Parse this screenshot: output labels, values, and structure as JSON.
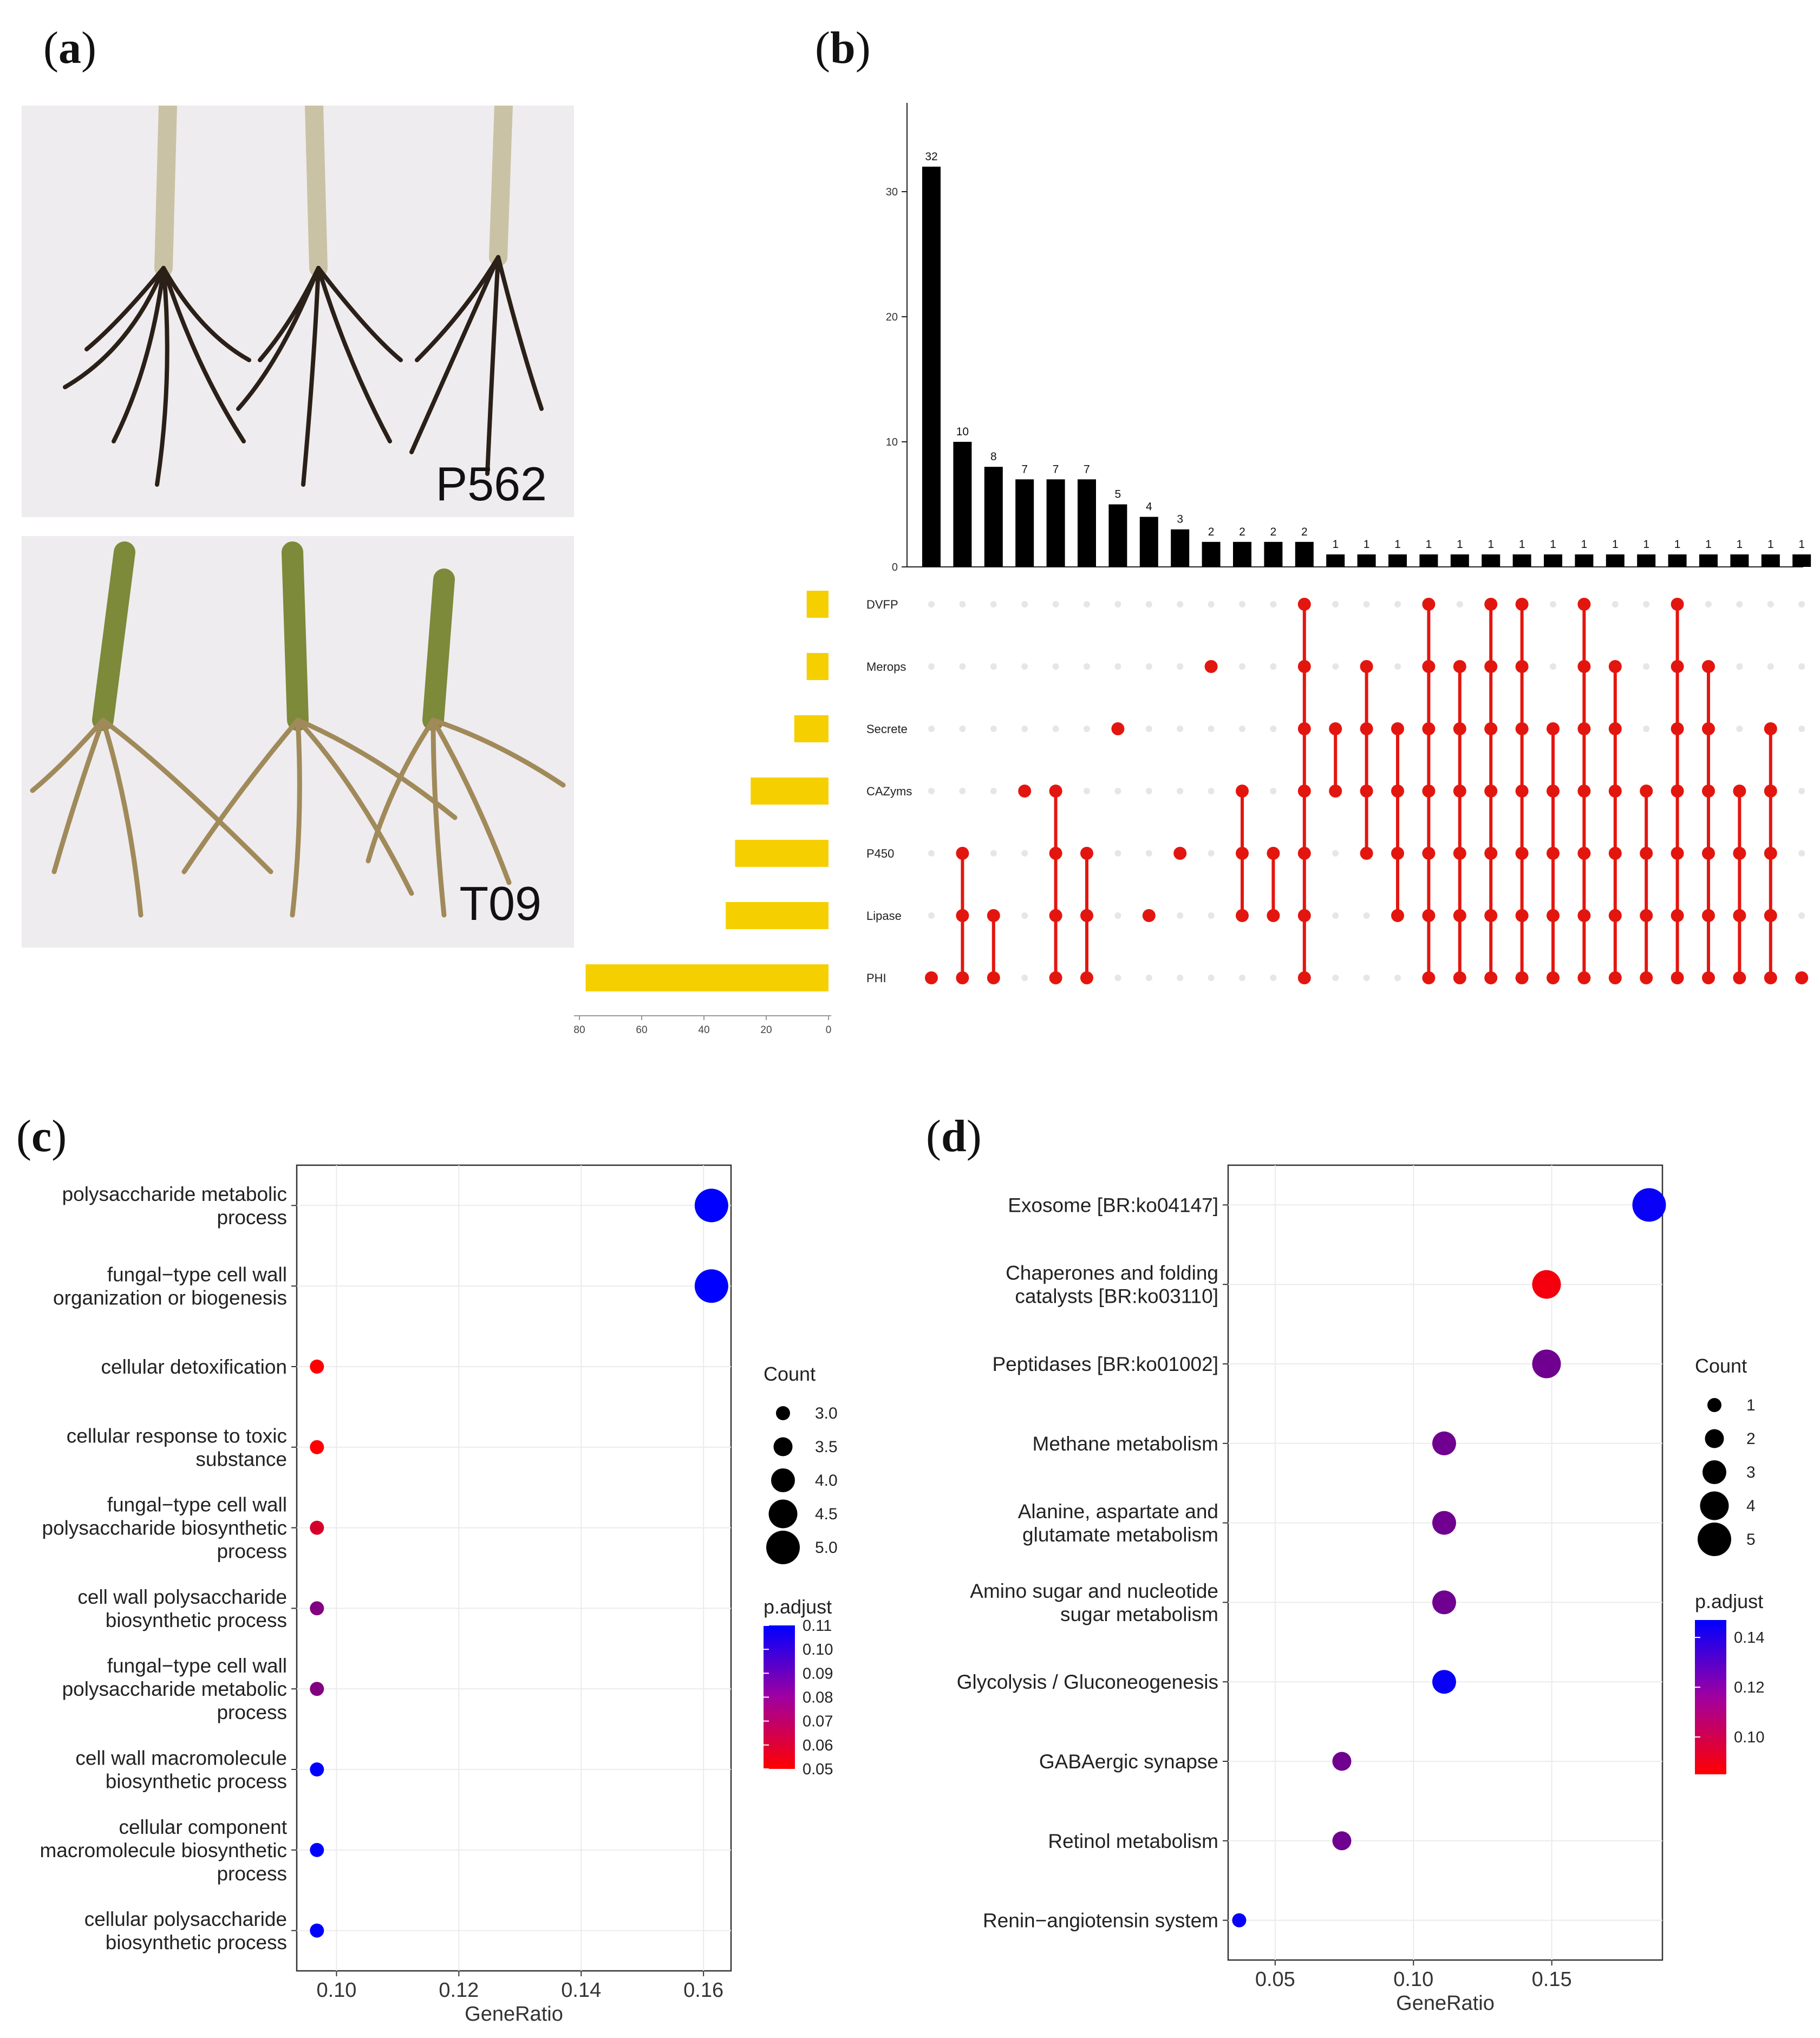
{
  "panels": {
    "a": {
      "letter": "a"
    },
    "b": {
      "letter": "b"
    },
    "c": {
      "letter": "c"
    },
    "d": {
      "letter": "d"
    }
  },
  "photos": {
    "top_label": "P562",
    "bottom_label": "T09"
  },
  "colors": {
    "bar": "#000000",
    "setbar": "#f5cf00",
    "dot": "#e3160f",
    "dot_off": "#e6e6e6",
    "grid": "#ebebeb",
    "low": "#ff0000",
    "high": "#0000ff"
  },
  "chart_data": [
    {
      "id": "b",
      "type": "bar",
      "title": "",
      "intersection_counts": [
        32,
        10,
        8,
        7,
        7,
        7,
        5,
        4,
        3,
        2,
        2,
        2,
        2,
        1,
        1,
        1,
        1,
        1,
        1,
        1,
        1,
        1,
        1,
        1,
        1,
        1,
        1,
        1,
        1
      ],
      "y_ticks": [
        0,
        10,
        20,
        30
      ],
      "sets": [
        "DVFP",
        "Merops",
        "Secrete",
        "CAZyms",
        "P450",
        "Lipase",
        "PHI"
      ],
      "set_sizes": [
        7,
        7,
        11,
        25,
        30,
        33,
        78
      ],
      "set_ticks": [
        80,
        60,
        40,
        20,
        0
      ],
      "memberships": [
        [
          "PHI"
        ],
        [
          "P450",
          "Lipase",
          "PHI"
        ],
        [
          "Lipase",
          "PHI"
        ],
        [
          "CAZyms"
        ],
        [
          "CAZyms",
          "P450",
          "Lipase",
          "PHI"
        ],
        [
          "P450",
          "Lipase",
          "PHI"
        ],
        [
          "Secrete"
        ],
        [
          "Lipase"
        ],
        [
          "P450"
        ],
        [
          "Merops"
        ],
        [
          "CAZyms",
          "P450",
          "Lipase"
        ],
        [
          "P450",
          "Lipase"
        ],
        [
          "DVFP",
          "Merops",
          "Secrete",
          "CAZyms",
          "P450",
          "Lipase",
          "PHI"
        ],
        [
          "Secrete",
          "CAZyms"
        ],
        [
          "Merops",
          "Secrete",
          "CAZyms",
          "P450"
        ],
        [
          "Secrete",
          "CAZyms",
          "P450",
          "Lipase"
        ],
        [
          "DVFP",
          "Merops",
          "Secrete",
          "CAZyms",
          "P450",
          "Lipase",
          "PHI"
        ],
        [
          "Merops",
          "Secrete",
          "CAZyms",
          "P450",
          "Lipase",
          "PHI"
        ],
        [
          "DVFP",
          "Merops",
          "Secrete",
          "CAZyms",
          "P450",
          "Lipase",
          "PHI"
        ],
        [
          "DVFP",
          "Merops",
          "Secrete",
          "CAZyms",
          "P450",
          "Lipase",
          "PHI"
        ],
        [
          "Secrete",
          "CAZyms",
          "P450",
          "Lipase",
          "PHI"
        ],
        [
          "DVFP",
          "Merops",
          "Secrete",
          "CAZyms",
          "P450",
          "Lipase",
          "PHI"
        ],
        [
          "Merops",
          "Secrete",
          "CAZyms",
          "P450",
          "Lipase",
          "PHI"
        ],
        [
          "CAZyms",
          "P450",
          "Lipase",
          "PHI"
        ],
        [
          "DVFP",
          "Merops",
          "Secrete",
          "CAZyms",
          "P450",
          "Lipase",
          "PHI"
        ],
        [
          "Merops",
          "Secrete",
          "CAZyms",
          "P450",
          "Lipase",
          "PHI"
        ],
        [
          "CAZyms",
          "P450",
          "Lipase",
          "PHI"
        ],
        [
          "Secrete",
          "CAZyms",
          "P450",
          "Lipase",
          "PHI"
        ],
        [
          "PHI"
        ]
      ],
      "empty_points_note": ""
    },
    {
      "id": "c",
      "type": "scatter",
      "xlabel": "GeneRatio",
      "xlim": [
        0.0935,
        0.1645
      ],
      "x_ticks": [
        "0.10",
        "0.12",
        "0.14",
        "0.16"
      ],
      "x_tick_values": [
        0.1,
        0.12,
        0.14,
        0.16
      ],
      "terms": [
        {
          "label": [
            "polysaccharide metabolic",
            "process"
          ],
          "x": 0.1613,
          "count": 5,
          "p": 0.11
        },
        {
          "label": [
            "fungal−type cell wall",
            "organization or biogenesis"
          ],
          "x": 0.1613,
          "count": 5,
          "p": 0.11
        },
        {
          "label": [
            "cellular detoxification"
          ],
          "x": 0.0968,
          "count": 3,
          "p": 0.05
        },
        {
          "label": [
            "cellular response to toxic",
            "substance"
          ],
          "x": 0.0968,
          "count": 3,
          "p": 0.05
        },
        {
          "label": [
            "fungal−type cell wall",
            "polysaccharide biosynthetic",
            "process"
          ],
          "x": 0.0968,
          "count": 3,
          "p": 0.06
        },
        {
          "label": [
            "cell wall polysaccharide",
            "biosynthetic process"
          ],
          "x": 0.0968,
          "count": 3,
          "p": 0.08
        },
        {
          "label": [
            "fungal−type cell wall",
            "polysaccharide metabolic",
            "process"
          ],
          "x": 0.0968,
          "count": 3,
          "p": 0.08
        },
        {
          "label": [
            "cell wall macromolecule",
            "biosynthetic process"
          ],
          "x": 0.0968,
          "count": 3,
          "p": 0.11
        },
        {
          "label": [
            "cellular component",
            "macromolecule biosynthetic",
            "process"
          ],
          "x": 0.0968,
          "count": 3,
          "p": 0.11
        },
        {
          "label": [
            "cellular polysaccharide",
            "biosynthetic process"
          ],
          "x": 0.0968,
          "count": 3,
          "p": 0.11
        }
      ],
      "count_legend": {
        "title": "Count",
        "values": [
          "3.0",
          "3.5",
          "4.0",
          "4.5",
          "5.0"
        ],
        "nums": [
          3.0,
          3.5,
          4.0,
          4.5,
          5.0
        ]
      },
      "color_legend": {
        "title": "p.adjust",
        "values": [
          "0.11",
          "0.10",
          "0.09",
          "0.08",
          "0.07",
          "0.06",
          "0.05"
        ],
        "range": [
          0.05,
          0.11
        ]
      }
    },
    {
      "id": "d",
      "type": "scatter",
      "xlabel": "GeneRatio",
      "xlim": [
        0.033,
        0.19
      ],
      "x_ticks": [
        "0.05",
        "0.10",
        "0.15"
      ],
      "x_tick_values": [
        0.05,
        0.1,
        0.15
      ],
      "terms": [
        {
          "label": [
            "Exosome [BR:ko04147]"
          ],
          "x": 0.1852,
          "count": 5,
          "p": 0.145
        },
        {
          "label": [
            "Chaperones and folding",
            "catalysts [BR:ko03110]"
          ],
          "x": 0.1481,
          "count": 4,
          "p": 0.088
        },
        {
          "label": [
            "Peptidases [BR:ko01002]"
          ],
          "x": 0.1481,
          "count": 4,
          "p": 0.12
        },
        {
          "label": [
            "Methane metabolism"
          ],
          "x": 0.1111,
          "count": 3,
          "p": 0.12
        },
        {
          "label": [
            "Alanine, aspartate and",
            "glutamate metabolism"
          ],
          "x": 0.1111,
          "count": 3,
          "p": 0.12
        },
        {
          "label": [
            "Amino sugar and nucleotide",
            "sugar metabolism"
          ],
          "x": 0.1111,
          "count": 3,
          "p": 0.12
        },
        {
          "label": [
            "Glycolysis / Gluconeogenesis"
          ],
          "x": 0.1111,
          "count": 3,
          "p": 0.145
        },
        {
          "label": [
            "GABAergic synapse"
          ],
          "x": 0.0741,
          "count": 2,
          "p": 0.12
        },
        {
          "label": [
            "Retinol metabolism"
          ],
          "x": 0.0741,
          "count": 2,
          "p": 0.12
        },
        {
          "label": [
            "Renin−angiotensin system"
          ],
          "x": 0.037,
          "count": 1,
          "p": 0.145
        }
      ],
      "count_legend": {
        "title": "Count",
        "values": [
          "1",
          "2",
          "3",
          "4",
          "5"
        ],
        "nums": [
          1,
          2,
          3,
          4,
          5
        ]
      },
      "color_legend": {
        "title": "p.adjust",
        "values": [
          "0.14",
          "0.12",
          "0.10"
        ],
        "range": [
          0.085,
          0.147
        ]
      }
    }
  ]
}
